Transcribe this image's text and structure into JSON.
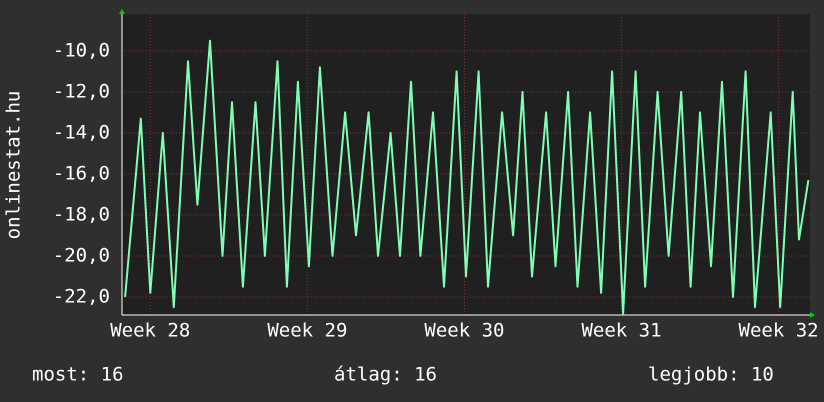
{
  "chart_data": {
    "type": "line",
    "y_label": "onlinestat.hu",
    "x": [
      27.84,
      27.94,
      28.0,
      28.08,
      28.15,
      28.24,
      28.3,
      28.38,
      28.46,
      28.52,
      28.59,
      28.67,
      28.73,
      28.81,
      28.87,
      28.94,
      29.01,
      29.08,
      29.16,
      29.24,
      29.31,
      29.39,
      29.45,
      29.53,
      29.59,
      29.66,
      29.72,
      29.8,
      29.87,
      29.95,
      30.01,
      30.09,
      30.15,
      30.24,
      30.31,
      30.37,
      30.43,
      30.52,
      30.58,
      30.66,
      30.72,
      30.8,
      30.87,
      30.94,
      31.01,
      31.09,
      31.15,
      31.23,
      31.3,
      31.38,
      31.44,
      31.5,
      31.57,
      31.64,
      31.71,
      31.79,
      31.85,
      31.95,
      32.01,
      32.09,
      32.13,
      32.19
    ],
    "series": [
      {
        "name": "onlinestat.hu",
        "color": "#80ffb4",
        "values": [
          -22,
          -13.3,
          -21.8,
          -14,
          -22.5,
          -10.5,
          -17.5,
          -9.5,
          -20,
          -12.5,
          -21.5,
          -12.5,
          -20,
          -10.5,
          -21.5,
          -11.5,
          -20.5,
          -10.8,
          -20,
          -13,
          -19,
          -13,
          -20,
          -14,
          -20,
          -11.5,
          -20,
          -13,
          -21.5,
          -11,
          -21,
          -11,
          -21.5,
          -13,
          -19,
          -12,
          -21,
          -13,
          -20.5,
          -12,
          -21.5,
          -13,
          -21.8,
          -11,
          -22.8,
          -11,
          -21.5,
          -12,
          -20,
          -12,
          -21.5,
          -13,
          -20.5,
          -11.5,
          -22,
          -11,
          -22.5,
          -13,
          -22.5,
          -12,
          -19.2,
          -16.3
        ]
      }
    ],
    "xlim": [
      27.82,
      32.2
    ],
    "xticks": [
      {
        "value": 28,
        "label": "Week 28"
      },
      {
        "value": 29,
        "label": "Week 29"
      },
      {
        "value": 30,
        "label": "Week 30"
      },
      {
        "value": 31,
        "label": "Week 31"
      },
      {
        "value": 32,
        "label": "Week 32"
      }
    ],
    "ylim": [
      -22.88,
      -8.2
    ],
    "yticks": [
      {
        "value": -22,
        "label": "-22,0"
      },
      {
        "value": -20,
        "label": "-20,0"
      },
      {
        "value": -18,
        "label": "-18,0"
      },
      {
        "value": -16,
        "label": "-16,0"
      },
      {
        "value": -14,
        "label": "-14,0"
      },
      {
        "value": -12,
        "label": "-12,0"
      },
      {
        "value": -10,
        "label": "-10,0"
      }
    ],
    "grid": true,
    "footer": [
      "most: 16",
      "átlag: 16",
      "legjobb: 10"
    ]
  }
}
